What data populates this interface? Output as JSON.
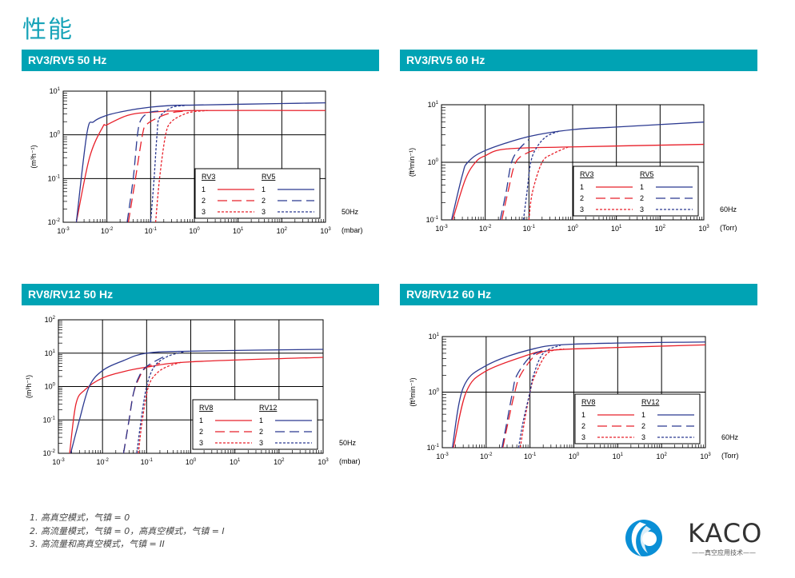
{
  "page_title": "性能",
  "footnotes": [
    "1. 高真空模式，气镇 = 0",
    "2. 高流量模式，气镇 = 0，高真空模式，气镇 = I",
    "3. 高流量和高真空模式，气镇 = II"
  ],
  "logo": {
    "brand": "KACO",
    "tagline": "——真空应用技术——",
    "color": "#0a8fd6"
  },
  "colors": {
    "header": "#00a3b4",
    "red": "#e8202a",
    "blue": "#2b3990"
  },
  "chart_data": [
    {
      "title": "RV3/RV5 50 Hz",
      "type": "line",
      "x_scale": "log",
      "y_scale": "log",
      "xlim": [
        0.001,
        1000
      ],
      "ylim": [
        0.01,
        10
      ],
      "grid": true,
      "ylabel": "(m³h⁻¹)",
      "xunit": "(mbar)",
      "frequency": "50Hz",
      "legend": {
        "position": "bottom-right",
        "groups": [
          {
            "label": "RV3",
            "color": "#e8202a"
          },
          {
            "label": "RV5",
            "color": "#2b3990"
          }
        ],
        "modes": [
          "1",
          "2",
          "3"
        ]
      },
      "series": [
        {
          "model": "RV3",
          "mode": "1",
          "style": "solid",
          "color": "#e8202a",
          "points": [
            [
              0.002,
              0.01
            ],
            [
              0.004,
              0.3
            ],
            [
              0.008,
              1.5
            ],
            [
              0.01,
              1.7
            ],
            [
              0.03,
              2.8
            ],
            [
              0.1,
              3.3
            ],
            [
              1,
              3.6
            ],
            [
              1000,
              3.6
            ]
          ]
        },
        {
          "model": "RV5",
          "mode": "1",
          "style": "solid",
          "color": "#2b3990",
          "points": [
            [
              0.002,
              0.01
            ],
            [
              0.0035,
              1.1
            ],
            [
              0.005,
              2
            ],
            [
              0.01,
              2.8
            ],
            [
              0.03,
              3.6
            ],
            [
              0.1,
              4.3
            ],
            [
              0.3,
              4.7
            ],
            [
              1,
              4.8
            ],
            [
              10,
              5.0
            ],
            [
              100,
              5.2
            ],
            [
              1000,
              5.4
            ]
          ]
        },
        {
          "model": "RV3",
          "mode": "2",
          "style": "dashed",
          "color": "#e8202a",
          "points": [
            [
              0.031,
              0.01
            ],
            [
              0.045,
              0.1
            ],
            [
              0.065,
              1
            ],
            [
              0.08,
              1.7
            ],
            [
              0.15,
              2.5
            ],
            [
              0.3,
              3.2
            ],
            [
              0.6,
              3.5
            ]
          ]
        },
        {
          "model": "RV5",
          "mode": "2",
          "style": "dashed",
          "color": "#2b3990",
          "points": [
            [
              0.029,
              0.01
            ],
            [
              0.04,
              0.1
            ],
            [
              0.05,
              1
            ],
            [
              0.06,
              2.2
            ],
            [
              0.09,
              3.2
            ],
            [
              0.15,
              3.5
            ]
          ]
        },
        {
          "model": "RV3",
          "mode": "3",
          "style": "dotted",
          "color": "#e8202a",
          "points": [
            [
              0.13,
              0.01
            ],
            [
              0.16,
              0.1
            ],
            [
              0.22,
              1
            ],
            [
              0.3,
              2
            ],
            [
              0.6,
              3
            ],
            [
              1,
              3.4
            ],
            [
              2,
              3.6
            ]
          ]
        },
        {
          "model": "RV5",
          "mode": "3",
          "style": "dotted",
          "color": "#2b3990",
          "points": [
            [
              0.1,
              0.01
            ],
            [
              0.12,
              0.1
            ],
            [
              0.14,
              1
            ],
            [
              0.16,
              2.5
            ],
            [
              0.3,
              4.2
            ],
            [
              0.6,
              4.7
            ]
          ]
        }
      ]
    },
    {
      "title": "RV3/RV5 60 Hz",
      "type": "line",
      "x_scale": "log",
      "y_scale": "log",
      "xlim": [
        0.001,
        1000
      ],
      "ylim": [
        0.1,
        10
      ],
      "grid": true,
      "ylabel": "(ft³min⁻¹)",
      "xunit": "(Torr)",
      "frequency": "60Hz",
      "legend": {
        "position": "bottom-right",
        "groups": [
          {
            "label": "RV3",
            "color": "#e8202a"
          },
          {
            "label": "RV5",
            "color": "#2b3990"
          }
        ],
        "modes": [
          "1",
          "2",
          "3"
        ]
      },
      "series": [
        {
          "model": "RV3",
          "mode": "1",
          "style": "solid",
          "color": "#e8202a",
          "points": [
            [
              0.0018,
              0.1
            ],
            [
              0.0035,
              0.5
            ],
            [
              0.006,
              1
            ],
            [
              0.01,
              1.3
            ],
            [
              0.03,
              1.7
            ],
            [
              1,
              1.85
            ],
            [
              1000,
              2.05
            ]
          ]
        },
        {
          "model": "RV5",
          "mode": "1",
          "style": "solid",
          "color": "#2b3990",
          "points": [
            [
              0.0017,
              0.1
            ],
            [
              0.003,
              0.6
            ],
            [
              0.004,
              1
            ],
            [
              0.01,
              1.6
            ],
            [
              0.1,
              2.8
            ],
            [
              1,
              3.7
            ],
            [
              10,
              4.1
            ],
            [
              1000,
              5.0
            ]
          ]
        },
        {
          "model": "RV3",
          "mode": "2",
          "style": "dashed",
          "color": "#e8202a",
          "points": [
            [
              0.024,
              0.1
            ],
            [
              0.033,
              0.3
            ],
            [
              0.05,
              1
            ],
            [
              0.1,
              1.5
            ],
            [
              0.17,
              1.65
            ]
          ]
        },
        {
          "model": "RV5",
          "mode": "2",
          "style": "dashed",
          "color": "#2b3990",
          "points": [
            [
              0.022,
              0.1
            ],
            [
              0.03,
              0.3
            ],
            [
              0.04,
              1
            ],
            [
              0.06,
              1.7
            ],
            [
              0.1,
              2.5
            ]
          ]
        },
        {
          "model": "RV3",
          "mode": "3",
          "style": "dotted",
          "color": "#e8202a",
          "points": [
            [
              0.1,
              0.1
            ],
            [
              0.12,
              0.3
            ],
            [
              0.2,
              1
            ],
            [
              0.35,
              1.4
            ],
            [
              0.8,
              1.85
            ]
          ]
        },
        {
          "model": "RV5",
          "mode": "3",
          "style": "dotted",
          "color": "#2b3990",
          "points": [
            [
              0.075,
              0.1
            ],
            [
              0.09,
              0.3
            ],
            [
              0.11,
              1
            ],
            [
              0.15,
              1.8
            ],
            [
              0.25,
              2.8
            ],
            [
              0.5,
              3.5
            ]
          ]
        }
      ]
    },
    {
      "title": "RV8/RV12 50 Hz",
      "type": "line",
      "x_scale": "log",
      "y_scale": "log",
      "xlim": [
        0.001,
        1000
      ],
      "ylim": [
        0.01,
        100
      ],
      "grid": true,
      "ylabel": "(m³h⁻¹)",
      "xunit": "(mbar)",
      "frequency": "50Hz",
      "legend": {
        "position": "bottom-right",
        "groups": [
          {
            "label": "RV8",
            "color": "#e8202a"
          },
          {
            "label": "RV12",
            "color": "#2b3990"
          }
        ],
        "modes": [
          "1",
          "2",
          "3"
        ]
      },
      "series": [
        {
          "model": "RV8",
          "mode": "1",
          "style": "solid",
          "color": "#e8202a",
          "points": [
            [
              0.0018,
              0.01
            ],
            [
              0.0025,
              0.3
            ],
            [
              0.004,
              0.8
            ],
            [
              0.01,
              1.8
            ],
            [
              0.03,
              2.8
            ],
            [
              0.1,
              3.8
            ],
            [
              1,
              5.5
            ],
            [
              1000,
              7.5
            ]
          ]
        },
        {
          "model": "RV12",
          "mode": "1",
          "style": "solid",
          "color": "#2b3990",
          "points": [
            [
              0.0019,
              0.01
            ],
            [
              0.003,
              0.1
            ],
            [
              0.005,
              1
            ],
            [
              0.01,
              3
            ],
            [
              0.03,
              6
            ],
            [
              0.1,
              10
            ],
            [
              1,
              11.5
            ],
            [
              1000,
              13
            ]
          ]
        },
        {
          "model": "RV8",
          "mode": "2",
          "style": "dashed",
          "color": "#e8202a",
          "points": [
            [
              0.03,
              0.01
            ],
            [
              0.04,
              0.1
            ],
            [
              0.05,
              0.6
            ],
            [
              0.07,
              2
            ],
            [
              0.1,
              3.8
            ],
            [
              0.2,
              5
            ]
          ]
        },
        {
          "model": "RV12",
          "mode": "2",
          "style": "dashed",
          "color": "#2b3990",
          "points": [
            [
              0.03,
              0.01
            ],
            [
              0.04,
              0.1
            ],
            [
              0.05,
              0.6
            ],
            [
              0.065,
              1.8
            ],
            [
              0.1,
              4
            ],
            [
              0.3,
              9
            ]
          ]
        },
        {
          "model": "RV8",
          "mode": "3",
          "style": "dotted",
          "color": "#e8202a",
          "points": [
            [
              0.065,
              0.01
            ],
            [
              0.08,
              0.1
            ],
            [
              0.11,
              1
            ],
            [
              0.17,
              2.5
            ],
            [
              0.3,
              4
            ],
            [
              0.6,
              5.3
            ]
          ]
        },
        {
          "model": "RV12",
          "mode": "3",
          "style": "dotted",
          "color": "#2b3990",
          "points": [
            [
              0.06,
              0.01
            ],
            [
              0.075,
              0.1
            ],
            [
              0.1,
              1
            ],
            [
              0.15,
              4
            ],
            [
              0.3,
              8
            ],
            [
              0.7,
              11
            ]
          ]
        }
      ]
    },
    {
      "title": "RV8/RV12 60 Hz",
      "type": "line",
      "x_scale": "log",
      "y_scale": "log",
      "xlim": [
        0.001,
        1000
      ],
      "ylim": [
        0.1,
        10
      ],
      "grid": true,
      "ylabel": "(ft³min⁻¹)",
      "xunit": "(Torr)",
      "frequency": "60Hz",
      "legend": {
        "position": "bottom-right",
        "groups": [
          {
            "label": "RV8",
            "color": "#e8202a"
          },
          {
            "label": "RV12",
            "color": "#2b3990"
          }
        ],
        "modes": [
          "1",
          "2",
          "3"
        ]
      },
      "series": [
        {
          "model": "RV8",
          "mode": "1",
          "style": "solid",
          "color": "#e8202a",
          "points": [
            [
              0.0018,
              0.1
            ],
            [
              0.0035,
              1
            ],
            [
              0.01,
              2.4
            ],
            [
              0.1,
              4.8
            ],
            [
              0.2,
              5.4
            ],
            [
              1,
              6
            ],
            [
              1000,
              7.1
            ]
          ]
        },
        {
          "model": "RV12",
          "mode": "1",
          "style": "solid",
          "color": "#2b3990",
          "points": [
            [
              0.0017,
              0.1
            ],
            [
              0.003,
              1.2
            ],
            [
              0.01,
              3
            ],
            [
              0.1,
              5.8
            ],
            [
              1,
              7.3
            ],
            [
              1000,
              8.0
            ]
          ]
        },
        {
          "model": "RV8",
          "mode": "2",
          "style": "dashed",
          "color": "#e8202a",
          "points": [
            [
              0.024,
              0.1
            ],
            [
              0.032,
              0.3
            ],
            [
              0.045,
              1
            ],
            [
              0.06,
              2
            ],
            [
              0.12,
              4.3
            ],
            [
              0.2,
              5.4
            ]
          ]
        },
        {
          "model": "RV12",
          "mode": "2",
          "style": "dashed",
          "color": "#2b3990",
          "points": [
            [
              0.023,
              0.1
            ],
            [
              0.03,
              0.3
            ],
            [
              0.04,
              1
            ],
            [
              0.05,
              2
            ],
            [
              0.1,
              4.3
            ],
            [
              0.2,
              5.7
            ]
          ]
        },
        {
          "model": "RV8",
          "mode": "3",
          "style": "dotted",
          "color": "#e8202a",
          "points": [
            [
              0.06,
              0.1
            ],
            [
              0.075,
              0.3
            ],
            [
              0.1,
              1
            ],
            [
              0.13,
              2
            ],
            [
              0.25,
              5
            ],
            [
              0.6,
              6
            ]
          ]
        },
        {
          "model": "RV12",
          "mode": "3",
          "style": "dotted",
          "color": "#2b3990",
          "points": [
            [
              0.055,
              0.1
            ],
            [
              0.07,
              0.3
            ],
            [
              0.1,
              1
            ],
            [
              0.12,
              2
            ],
            [
              0.2,
              5
            ],
            [
              0.5,
              7
            ]
          ]
        }
      ]
    }
  ]
}
